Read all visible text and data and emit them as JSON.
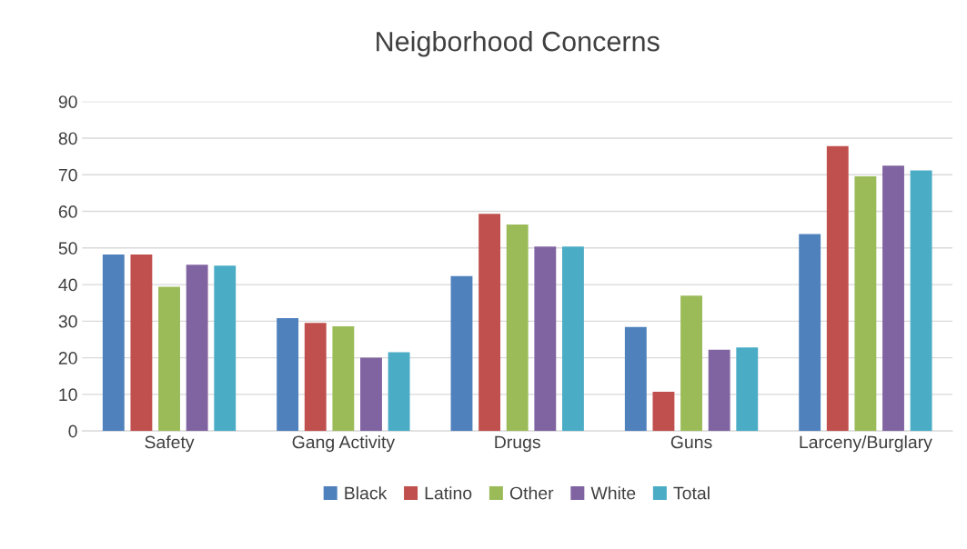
{
  "chart_data": {
    "type": "bar",
    "title": "Neigborhood Concerns",
    "categories": [
      "Safety",
      "Gang Activity",
      "Drugs",
      "Guns",
      "Larceny/Burglary"
    ],
    "series": [
      {
        "name": "Black",
        "color": "#4f81bd",
        "values": [
          48.2,
          30.8,
          42.3,
          28.4,
          53.8
        ]
      },
      {
        "name": "Latino",
        "color": "#c0504d",
        "values": [
          48.2,
          29.5,
          59.3,
          10.7,
          77.8
        ]
      },
      {
        "name": "Other",
        "color": "#9bbb59",
        "values": [
          39.4,
          28.6,
          56.4,
          37.0,
          69.6
        ]
      },
      {
        "name": "White",
        "color": "#8064a2",
        "values": [
          45.4,
          20.0,
          50.4,
          22.2,
          72.5
        ]
      },
      {
        "name": "Total",
        "color": "#4bacc6",
        "values": [
          45.2,
          21.5,
          50.4,
          22.8,
          71.2
        ]
      }
    ],
    "ylim": [
      0,
      90
    ],
    "yticks": [
      0,
      10,
      20,
      30,
      40,
      50,
      60,
      70,
      80,
      90
    ],
    "grid": "y",
    "legend": "bottom"
  }
}
